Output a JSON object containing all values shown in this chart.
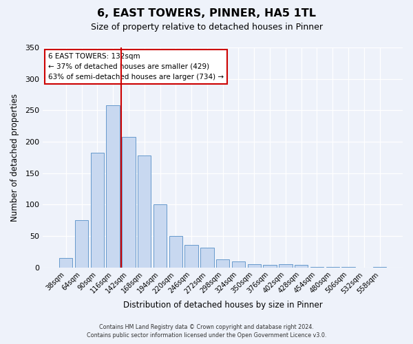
{
  "title": "6, EAST TOWERS, PINNER, HA5 1TL",
  "subtitle": "Size of property relative to detached houses in Pinner",
  "xlabel": "Distribution of detached houses by size in Pinner",
  "ylabel": "Number of detached properties",
  "bar_labels": [
    "38sqm",
    "64sqm",
    "90sqm",
    "116sqm",
    "142sqm",
    "168sqm",
    "194sqm",
    "220sqm",
    "246sqm",
    "272sqm",
    "298sqm",
    "324sqm",
    "350sqm",
    "376sqm",
    "402sqm",
    "428sqm",
    "454sqm",
    "480sqm",
    "506sqm",
    "532sqm",
    "558sqm"
  ],
  "bar_values": [
    15,
    75,
    183,
    258,
    208,
    178,
    100,
    50,
    36,
    31,
    13,
    10,
    5,
    4,
    5,
    4,
    1,
    1,
    1,
    0,
    1
  ],
  "bar_color": "#c8d8f0",
  "bar_edge_color": "#6699cc",
  "vline_color": "#cc0000",
  "ylim": [
    0,
    350
  ],
  "yticks": [
    0,
    50,
    100,
    150,
    200,
    250,
    300,
    350
  ],
  "annotation_title": "6 EAST TOWERS: 132sqm",
  "annotation_line1": "← 37% of detached houses are smaller (429)",
  "annotation_line2": "63% of semi-detached houses are larger (734) →",
  "annotation_box_color": "#ffffff",
  "annotation_box_edge": "#cc0000",
  "footer1": "Contains HM Land Registry data © Crown copyright and database right 2024.",
  "footer2": "Contains public sector information licensed under the Open Government Licence v3.0.",
  "bg_color": "#eef2fa",
  "plot_bg_color": "#eef2fa"
}
